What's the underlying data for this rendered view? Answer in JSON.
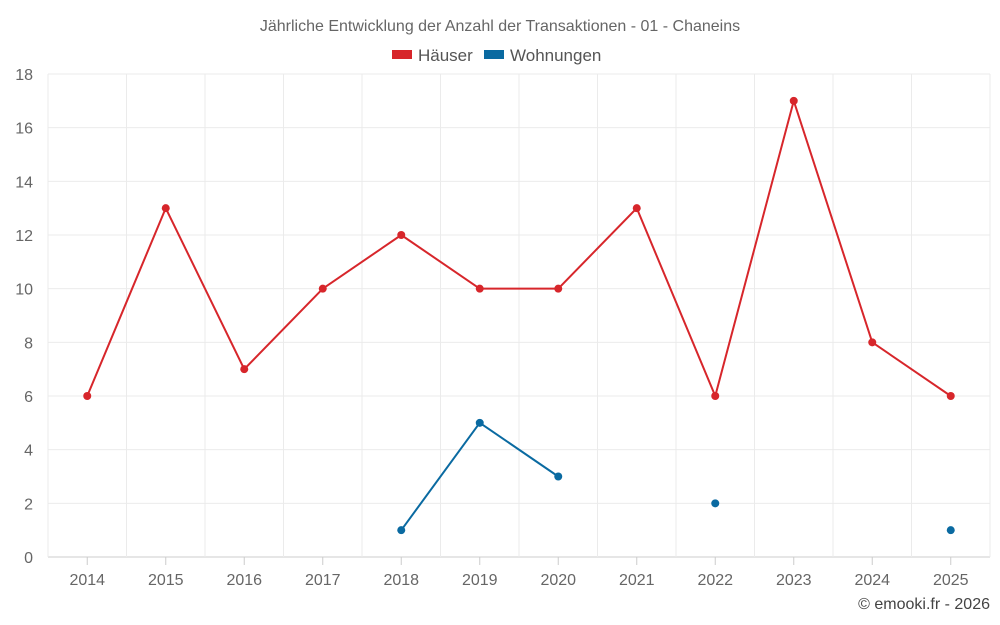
{
  "chart_data": {
    "type": "line",
    "title": "Jährliche Entwicklung der Anzahl der Transaktionen - 01 - Chaneins",
    "categories": [
      "2014",
      "2015",
      "2016",
      "2017",
      "2018",
      "2019",
      "2020",
      "2021",
      "2022",
      "2023",
      "2024",
      "2025"
    ],
    "ylim": [
      0,
      18
    ],
    "yticks": [
      0,
      2,
      4,
      6,
      8,
      10,
      12,
      14,
      16,
      18
    ],
    "grid": true,
    "legend_position": "top-center",
    "series": [
      {
        "name": "Häuser",
        "color": "#d7262b",
        "values": [
          6,
          13,
          7,
          10,
          12,
          10,
          10,
          13,
          6,
          17,
          8,
          6
        ]
      },
      {
        "name": "Wohnungen",
        "color": "#0a6aa1",
        "values": [
          null,
          null,
          null,
          null,
          1,
          5,
          3,
          null,
          2,
          null,
          null,
          1
        ]
      }
    ],
    "credit": "© emooki.fr - 2026"
  }
}
